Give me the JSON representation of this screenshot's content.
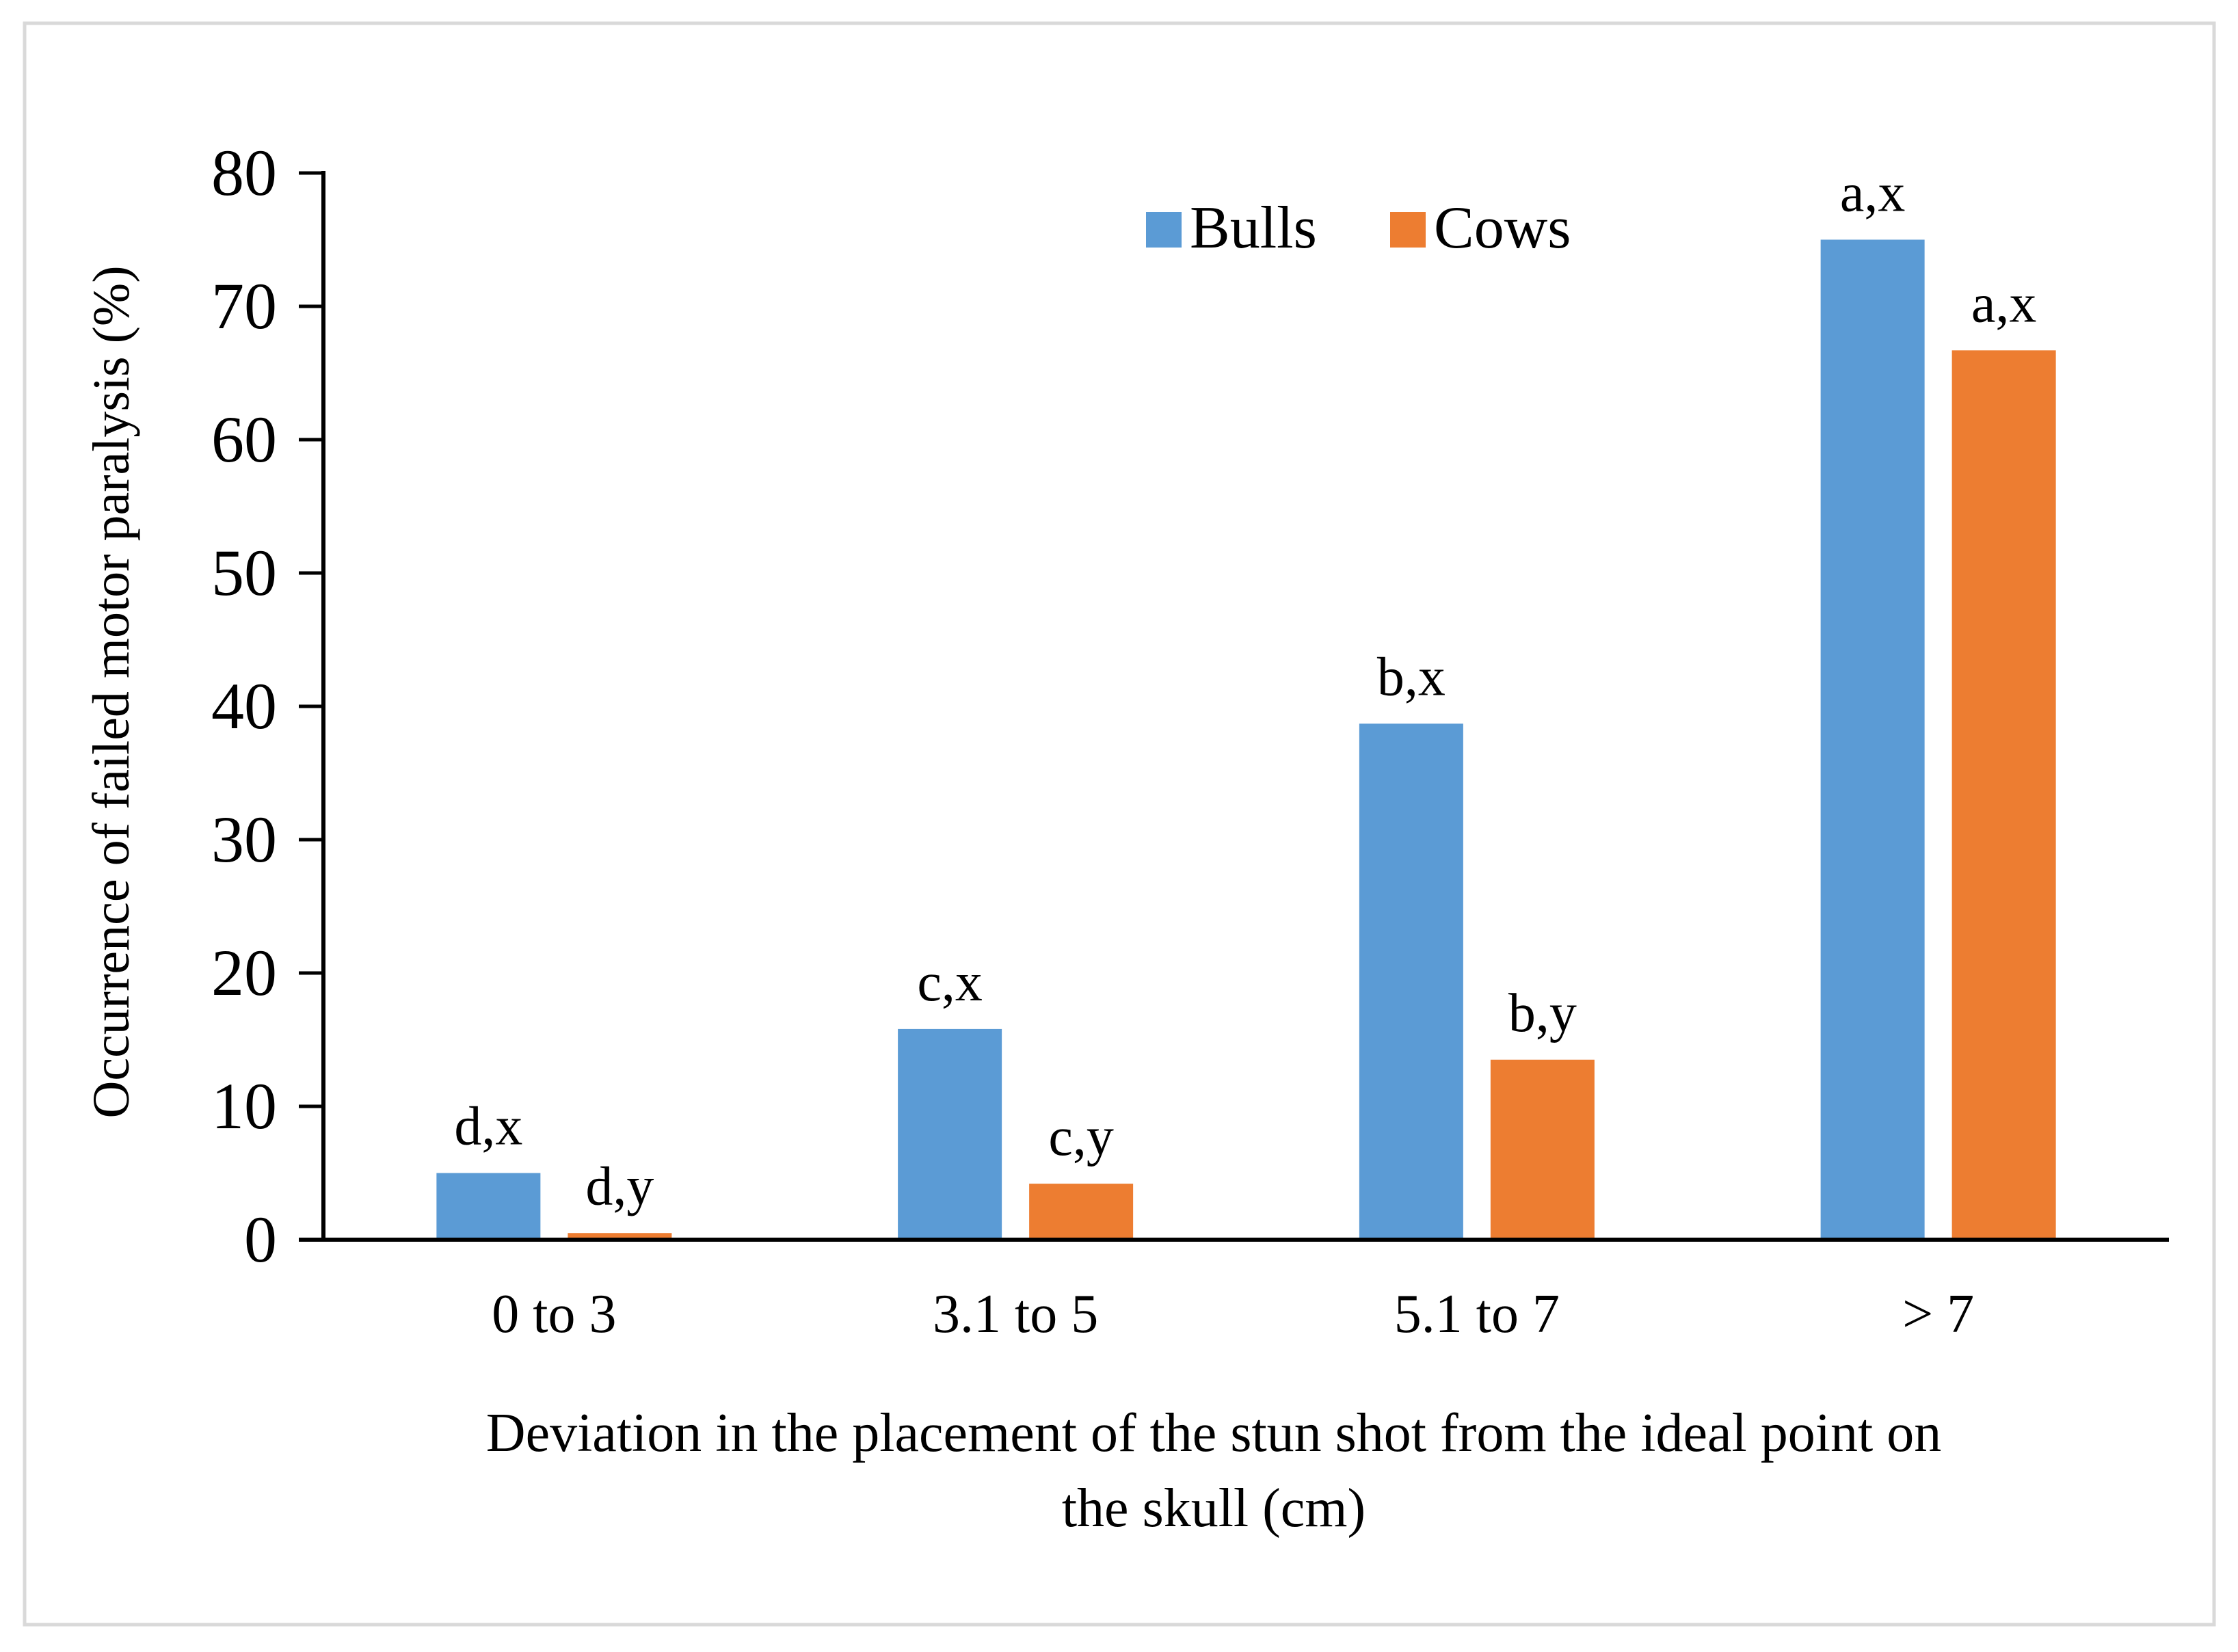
{
  "chart_data": {
    "type": "bar",
    "title": "",
    "categories": [
      "0 to 3",
      "3.1 to 5",
      "5.1 to 7",
      "> 7"
    ],
    "series": [
      {
        "name": "Bulls",
        "color": "#5B9BD5",
        "values": [
          5.0,
          15.8,
          38.7,
          75.0
        ],
        "labels": [
          "d,x",
          "c,x",
          "b,x",
          "a,x"
        ]
      },
      {
        "name": "Cows",
        "color": "#ED7D31",
        "values": [
          0.5,
          4.2,
          13.5,
          66.7
        ],
        "labels": [
          "d,y",
          "c,y",
          "b,y",
          "a,x"
        ]
      }
    ],
    "ylabel": "Occurrence of failed motor paralysis (%)",
    "xlabel_lines": [
      "Deviation in the placement of the stun shot from the ideal point on",
      "the skull (cm)"
    ],
    "ylim": [
      0,
      80
    ],
    "yticks": [
      0,
      10,
      20,
      30,
      40,
      50,
      60,
      70,
      80
    ],
    "grid": false,
    "legend_position": "top-center"
  }
}
